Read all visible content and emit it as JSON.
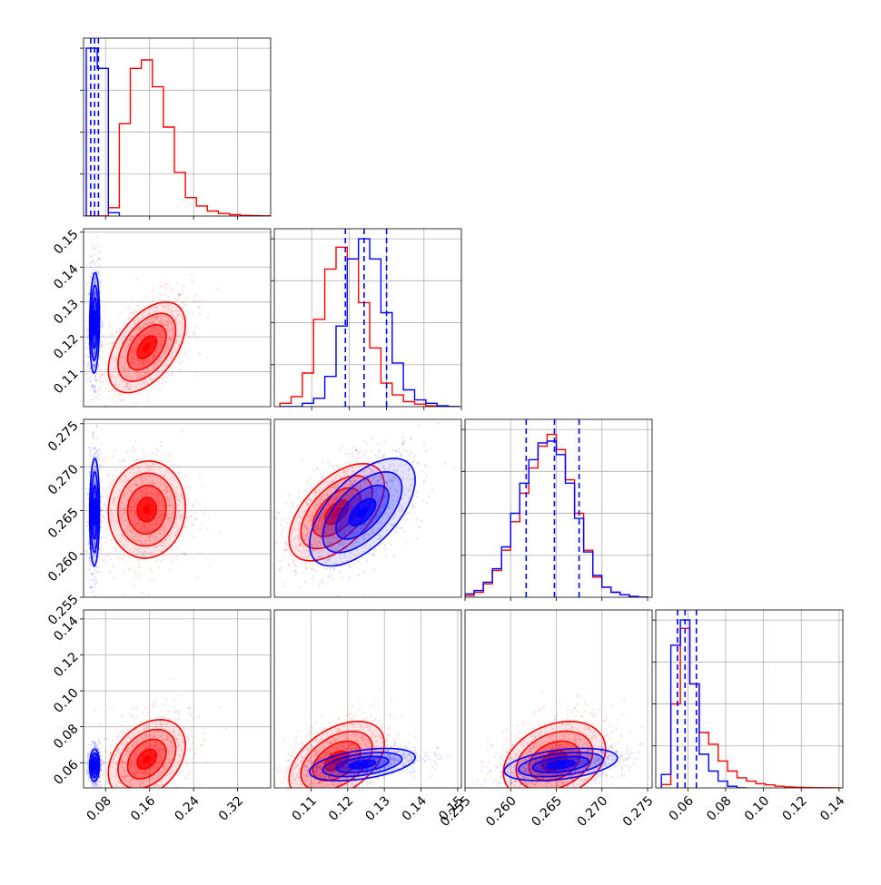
{
  "colors": {
    "model_a": "#ff0000",
    "model_b": "#0000ff",
    "grid": "#b0b0b0",
    "axis": "#000000"
  },
  "chart_data": [
    {
      "type": "histogram",
      "panel": "p0-marginal",
      "x": {
        "range": [
          0.04,
          0.38
        ],
        "ticks": [
          0.08,
          0.16,
          0.24,
          0.32
        ],
        "tick_labels": []
      },
      "quantile_lines_blue": [
        0.053,
        0.06,
        0.067
      ],
      "series": [
        {
          "color": "red",
          "bin_centers": [
            0.055,
            0.075,
            0.095,
            0.115,
            0.135,
            0.155,
            0.175,
            0.195,
            0.215,
            0.235,
            0.255,
            0.275,
            0.295,
            0.315,
            0.335,
            0.355,
            0.375
          ],
          "counts": [
            0,
            0,
            0.05,
            0.55,
            0.88,
            0.93,
            0.77,
            0.53,
            0.26,
            0.11,
            0.06,
            0.03,
            0.015,
            0.008,
            0.004,
            0.002,
            0.001
          ]
        },
        {
          "color": "blue",
          "bin_centers": [
            0.055,
            0.075,
            0.095
          ],
          "counts": [
            1.0,
            0.88,
            0.02
          ]
        }
      ]
    },
    {
      "type": "histogram",
      "panel": "p1-marginal",
      "x": {
        "range": [
          0.1,
          0.15
        ],
        "ticks": [
          0.11,
          0.12,
          0.13,
          0.14,
          0.15
        ],
        "tick_labels": []
      },
      "quantile_lines_blue": [
        0.119,
        0.124,
        0.13
      ],
      "series": [
        {
          "color": "red",
          "bin_centers": [
            0.103,
            0.106,
            0.109,
            0.112,
            0.115,
            0.118,
            0.121,
            0.124,
            0.127,
            0.13,
            0.133,
            0.136,
            0.139,
            0.142,
            0.145,
            0.148
          ],
          "counts": [
            0.02,
            0.06,
            0.2,
            0.52,
            0.82,
            0.95,
            0.88,
            0.62,
            0.35,
            0.14,
            0.07,
            0.03,
            0.015,
            0.005,
            0.002,
            0
          ]
        },
        {
          "color": "blue",
          "bin_centers": [
            0.103,
            0.106,
            0.109,
            0.112,
            0.115,
            0.118,
            0.121,
            0.124,
            0.127,
            0.13,
            0.133,
            0.136,
            0.139,
            0.142,
            0.145,
            0.148
          ],
          "counts": [
            0,
            0,
            0.02,
            0.05,
            0.18,
            0.48,
            0.88,
            1.0,
            0.88,
            0.56,
            0.26,
            0.1,
            0.04,
            0.02,
            0.005,
            0
          ]
        }
      ]
    },
    {
      "type": "histogram",
      "panel": "p2-marginal",
      "x": {
        "range": [
          0.255,
          0.2755
        ],
        "ticks": [
          0.255,
          0.26,
          0.265,
          0.27,
          0.275
        ],
        "tick_labels": []
      },
      "quantile_lines_blue": [
        0.2617,
        0.2648,
        0.2675
      ],
      "series": [
        {
          "color": "red",
          "bin_centers": [
            0.2555,
            0.2565,
            0.2575,
            0.2585,
            0.2595,
            0.2605,
            0.2615,
            0.2625,
            0.2635,
            0.2645,
            0.2655,
            0.2665,
            0.2675,
            0.2685,
            0.2695,
            0.2705,
            0.2715,
            0.2725,
            0.2735,
            0.2745
          ],
          "counts": [
            0.01,
            0.03,
            0.08,
            0.16,
            0.28,
            0.45,
            0.62,
            0.77,
            0.9,
            0.97,
            0.88,
            0.7,
            0.5,
            0.28,
            0.12,
            0.06,
            0.03,
            0.015,
            0.005,
            0
          ]
        },
        {
          "color": "blue",
          "bin_centers": [
            0.2555,
            0.2565,
            0.2575,
            0.2585,
            0.2595,
            0.2605,
            0.2615,
            0.2625,
            0.2635,
            0.2645,
            0.2655,
            0.2665,
            0.2675,
            0.2685,
            0.2695,
            0.2705,
            0.2715,
            0.2725,
            0.2735,
            0.2745
          ],
          "counts": [
            0.02,
            0.04,
            0.09,
            0.17,
            0.3,
            0.5,
            0.68,
            0.82,
            0.92,
            0.93,
            0.85,
            0.68,
            0.47,
            0.27,
            0.13,
            0.06,
            0.03,
            0.015,
            0.005,
            0
          ]
        }
      ]
    },
    {
      "type": "histogram",
      "panel": "p3-marginal",
      "x": {
        "range": [
          0.043,
          0.142
        ],
        "ticks": [
          0.06,
          0.08,
          0.1,
          0.12,
          0.14
        ],
        "tick_labels": [
          "0.06",
          "0.08",
          "0.10",
          "0.12",
          "0.14"
        ]
      },
      "quantile_lines_blue": [
        0.0545,
        0.0585,
        0.0645
      ],
      "series": [
        {
          "color": "red",
          "bin_centers": [
            0.0485,
            0.0535,
            0.0585,
            0.0635,
            0.0685,
            0.0735,
            0.0785,
            0.0835,
            0.0885,
            0.0935,
            0.0985,
            0.1035,
            0.1085,
            0.1135,
            0.1185,
            0.1235,
            0.1285,
            0.1335,
            0.1385
          ],
          "counts": [
            0.02,
            0.5,
            0.95,
            0.62,
            0.33,
            0.26,
            0.16,
            0.1,
            0.06,
            0.04,
            0.025,
            0.018,
            0.01,
            0.006,
            0.004,
            0.002,
            0.001,
            0.001,
            0
          ]
        },
        {
          "color": "blue",
          "bin_centers": [
            0.0485,
            0.0535,
            0.0585,
            0.0635,
            0.0685,
            0.0735,
            0.0785,
            0.0835,
            0.0885
          ],
          "counts": [
            0.08,
            0.85,
            1.0,
            0.62,
            0.2,
            0.1,
            0.04,
            0.01,
            0
          ]
        }
      ]
    },
    {
      "type": "scatter",
      "panel": "p1-vs-p0",
      "x": {
        "range": [
          0.04,
          0.38
        ]
      },
      "y": {
        "range": [
          0.1,
          0.151
        ],
        "ticks": [
          0.11,
          0.12,
          0.13,
          0.14,
          0.15
        ],
        "tick_labels": [
          "0.11",
          "0.12",
          "0.13",
          "0.14",
          "0.15"
        ]
      },
      "series": [
        {
          "color": "red",
          "center": [
            0.155,
            0.117
          ],
          "sd": [
            0.035,
            0.0065
          ],
          "rho": 0.5,
          "contour_levels": [
            "0.5σ",
            "1σ",
            "1.5σ",
            "2σ"
          ]
        },
        {
          "color": "blue",
          "center": [
            0.06,
            0.124
          ],
          "sd": [
            0.0045,
            0.0072
          ],
          "rho": 0.1,
          "contour_levels": [
            "0.5σ",
            "1σ",
            "1.5σ",
            "2σ"
          ]
        }
      ]
    },
    {
      "type": "scatter",
      "panel": "p2-vs-p0",
      "x": {
        "range": [
          0.04,
          0.38
        ]
      },
      "y": {
        "range": [
          0.255,
          0.2755
        ],
        "ticks": [
          0.255,
          0.26,
          0.265,
          0.27,
          0.275
        ],
        "tick_labels": [
          "0.255",
          "0.260",
          "0.265",
          "0.270",
          "0.275"
        ]
      },
      "series": [
        {
          "color": "red",
          "center": [
            0.155,
            0.2651
          ],
          "sd": [
            0.035,
            0.0028
          ],
          "rho": 0.05,
          "contour_levels": [
            "0.5σ",
            "1σ",
            "1.5σ",
            "2σ"
          ]
        },
        {
          "color": "blue",
          "center": [
            0.06,
            0.2648
          ],
          "sd": [
            0.0045,
            0.0031
          ],
          "rho": 0.05,
          "contour_levels": [
            "0.5σ",
            "1σ",
            "1.5σ",
            "2σ"
          ]
        }
      ]
    },
    {
      "type": "scatter",
      "panel": "p2-vs-p1",
      "x": {
        "range": [
          0.1,
          0.151
        ]
      },
      "y": {
        "range": [
          0.255,
          0.2755
        ]
      },
      "series": [
        {
          "color": "red",
          "center": [
            0.117,
            0.2648
          ],
          "sd": [
            0.0065,
            0.0028
          ],
          "rho": 0.55,
          "contour_levels": [
            "0.5σ",
            "1σ",
            "1.5σ",
            "2σ"
          ]
        },
        {
          "color": "blue",
          "center": [
            0.124,
            0.2648
          ],
          "sd": [
            0.0072,
            0.0031
          ],
          "rho": 0.6,
          "contour_levels": [
            "0.5σ",
            "1σ",
            "1.5σ",
            "2σ"
          ]
        }
      ]
    },
    {
      "type": "scatter",
      "panel": "p3-vs-p0",
      "x": {
        "range": [
          0.04,
          0.38
        ],
        "ticks": [
          0.08,
          0.16,
          0.24,
          0.32
        ],
        "tick_labels": [
          "0.08",
          "0.16",
          "0.24",
          "0.32"
        ]
      },
      "y": {
        "range": [
          0.046,
          0.145
        ],
        "ticks": [
          0.06,
          0.08,
          0.1,
          0.12,
          0.14
        ],
        "tick_labels": [
          "0.06",
          "0.08",
          "0.10",
          "0.12",
          "0.14"
        ]
      },
      "series": [
        {
          "color": "red",
          "center": [
            0.155,
            0.062
          ],
          "sd": [
            0.035,
            0.011
          ],
          "rho": 0.35,
          "contour_levels": [
            "0.5σ",
            "1σ",
            "1.5σ",
            "2σ"
          ]
        },
        {
          "color": "blue",
          "center": [
            0.06,
            0.0585
          ],
          "sd": [
            0.0045,
            0.0045
          ],
          "rho": 0.05,
          "contour_levels": [
            "0.5σ",
            "1σ",
            "1.5σ",
            "2σ"
          ]
        }
      ]
    },
    {
      "type": "scatter",
      "panel": "p3-vs-p1",
      "x": {
        "range": [
          0.1,
          0.151
        ],
        "ticks": [
          0.11,
          0.12,
          0.13,
          0.14,
          0.15
        ],
        "tick_labels": [
          "0.11",
          "0.12",
          "0.13",
          "0.14",
          "0.15"
        ]
      },
      "y": {
        "range": [
          0.046,
          0.145
        ]
      },
      "series": [
        {
          "color": "red",
          "center": [
            0.117,
            0.061
          ],
          "sd": [
            0.0065,
            0.011
          ],
          "rho": 0.45,
          "contour_levels": [
            "0.5σ",
            "1σ",
            "1.5σ",
            "2σ"
          ]
        },
        {
          "color": "blue",
          "center": [
            0.124,
            0.059
          ],
          "sd": [
            0.0072,
            0.0045
          ],
          "rho": 0.45,
          "contour_levels": [
            "0.5σ",
            "1σ",
            "1.5σ",
            "2σ"
          ]
        }
      ]
    },
    {
      "type": "scatter",
      "panel": "p3-vs-p2",
      "x": {
        "range": [
          0.255,
          0.2755
        ],
        "ticks": [
          0.255,
          0.26,
          0.265,
          0.27,
          0.275
        ],
        "tick_labels": [
          "0.255",
          "0.260",
          "0.265",
          "0.270",
          "0.275"
        ]
      },
      "y": {
        "range": [
          0.046,
          0.145
        ]
      },
      "series": [
        {
          "color": "red",
          "center": [
            0.2648,
            0.061
          ],
          "sd": [
            0.0028,
            0.011
          ],
          "rho": 0.3,
          "contour_levels": [
            "0.5σ",
            "1σ",
            "1.5σ",
            "2σ"
          ]
        },
        {
          "color": "blue",
          "center": [
            0.2655,
            0.059
          ],
          "sd": [
            0.0031,
            0.0045
          ],
          "rho": 0.4,
          "contour_levels": [
            "0.5σ",
            "1σ",
            "1.5σ",
            "2σ"
          ]
        }
      ]
    }
  ]
}
